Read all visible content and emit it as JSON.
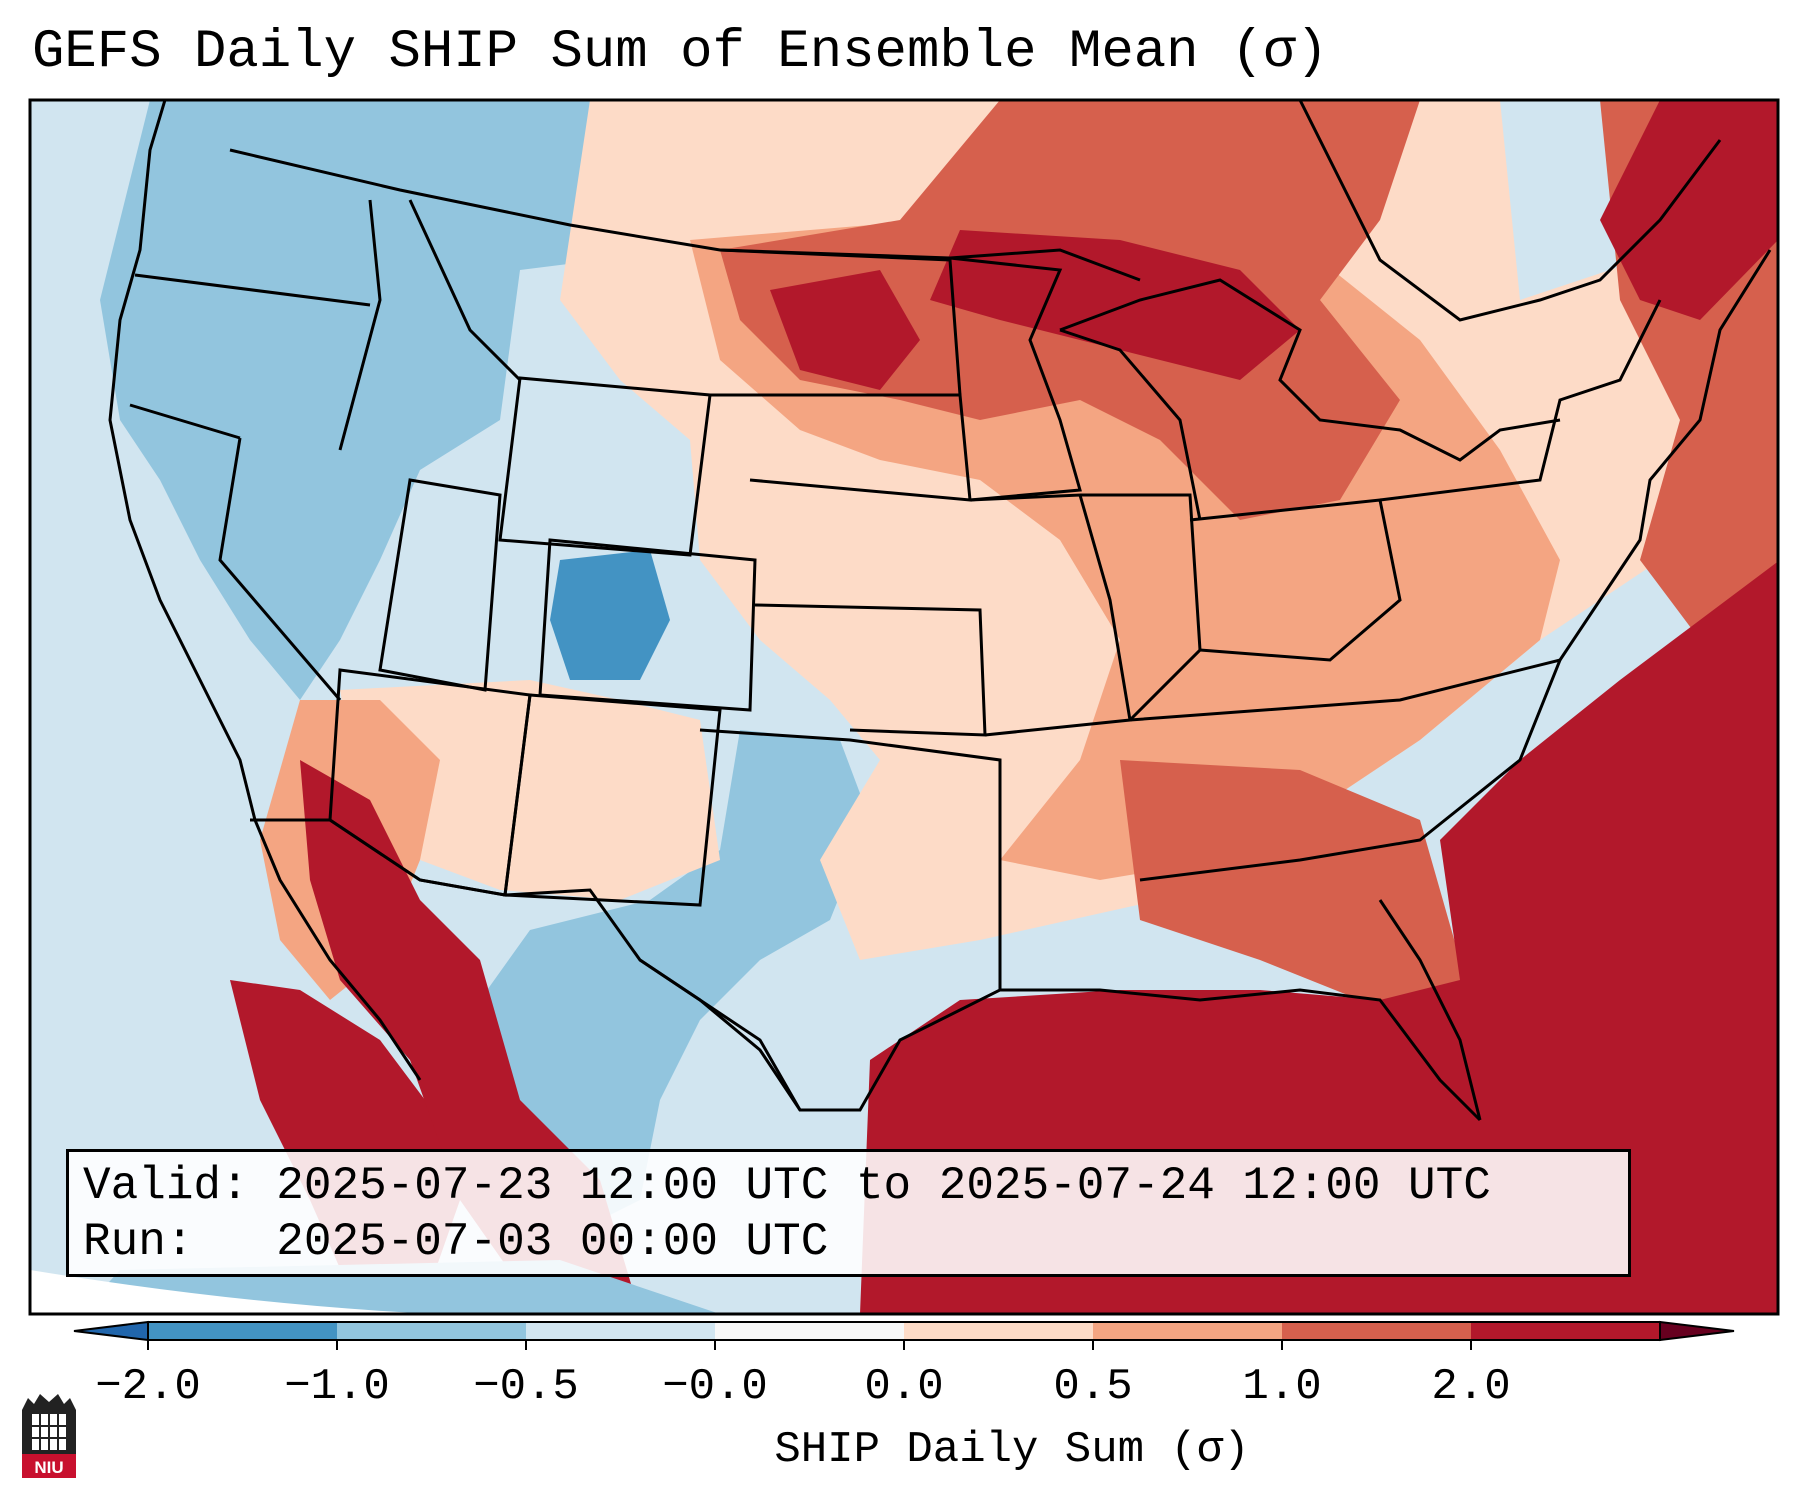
{
  "title": "GEFS Daily SHIP Sum of Ensemble Mean (σ)",
  "valid_label": "Valid:",
  "valid_value": "2025-07-23 12:00 UTC to 2025-07-24 12:00 UTC",
  "run_label": "Run:",
  "run_value": "2025-07-03 00:00 UTC",
  "colorbar": {
    "label": "SHIP Daily Sum (σ)",
    "ticks": [
      "−2.0",
      "−1.0",
      "−0.5",
      "−0.0",
      "0.0",
      "0.5",
      "1.0",
      "2.0"
    ],
    "colors": [
      "#4393c3",
      "#92c5de",
      "#d1e5f0",
      "#f7f7f7",
      "#fddbc7",
      "#f4a582",
      "#d6604d",
      "#b2182b"
    ],
    "under_color": "#2166ac",
    "over_color": "#67001f"
  },
  "logo_text": "NIU",
  "colors": {
    "ocean_neutral": "#d1e5f0",
    "strong_positive": "#b2182b",
    "moderate_positive": "#d6604d",
    "weak_positive": "#f4a582",
    "slight_positive": "#fddbc7",
    "slight_negative": "#d1e5f0",
    "weak_negative": "#92c5de",
    "moderate_negative": "#4393c3"
  }
}
